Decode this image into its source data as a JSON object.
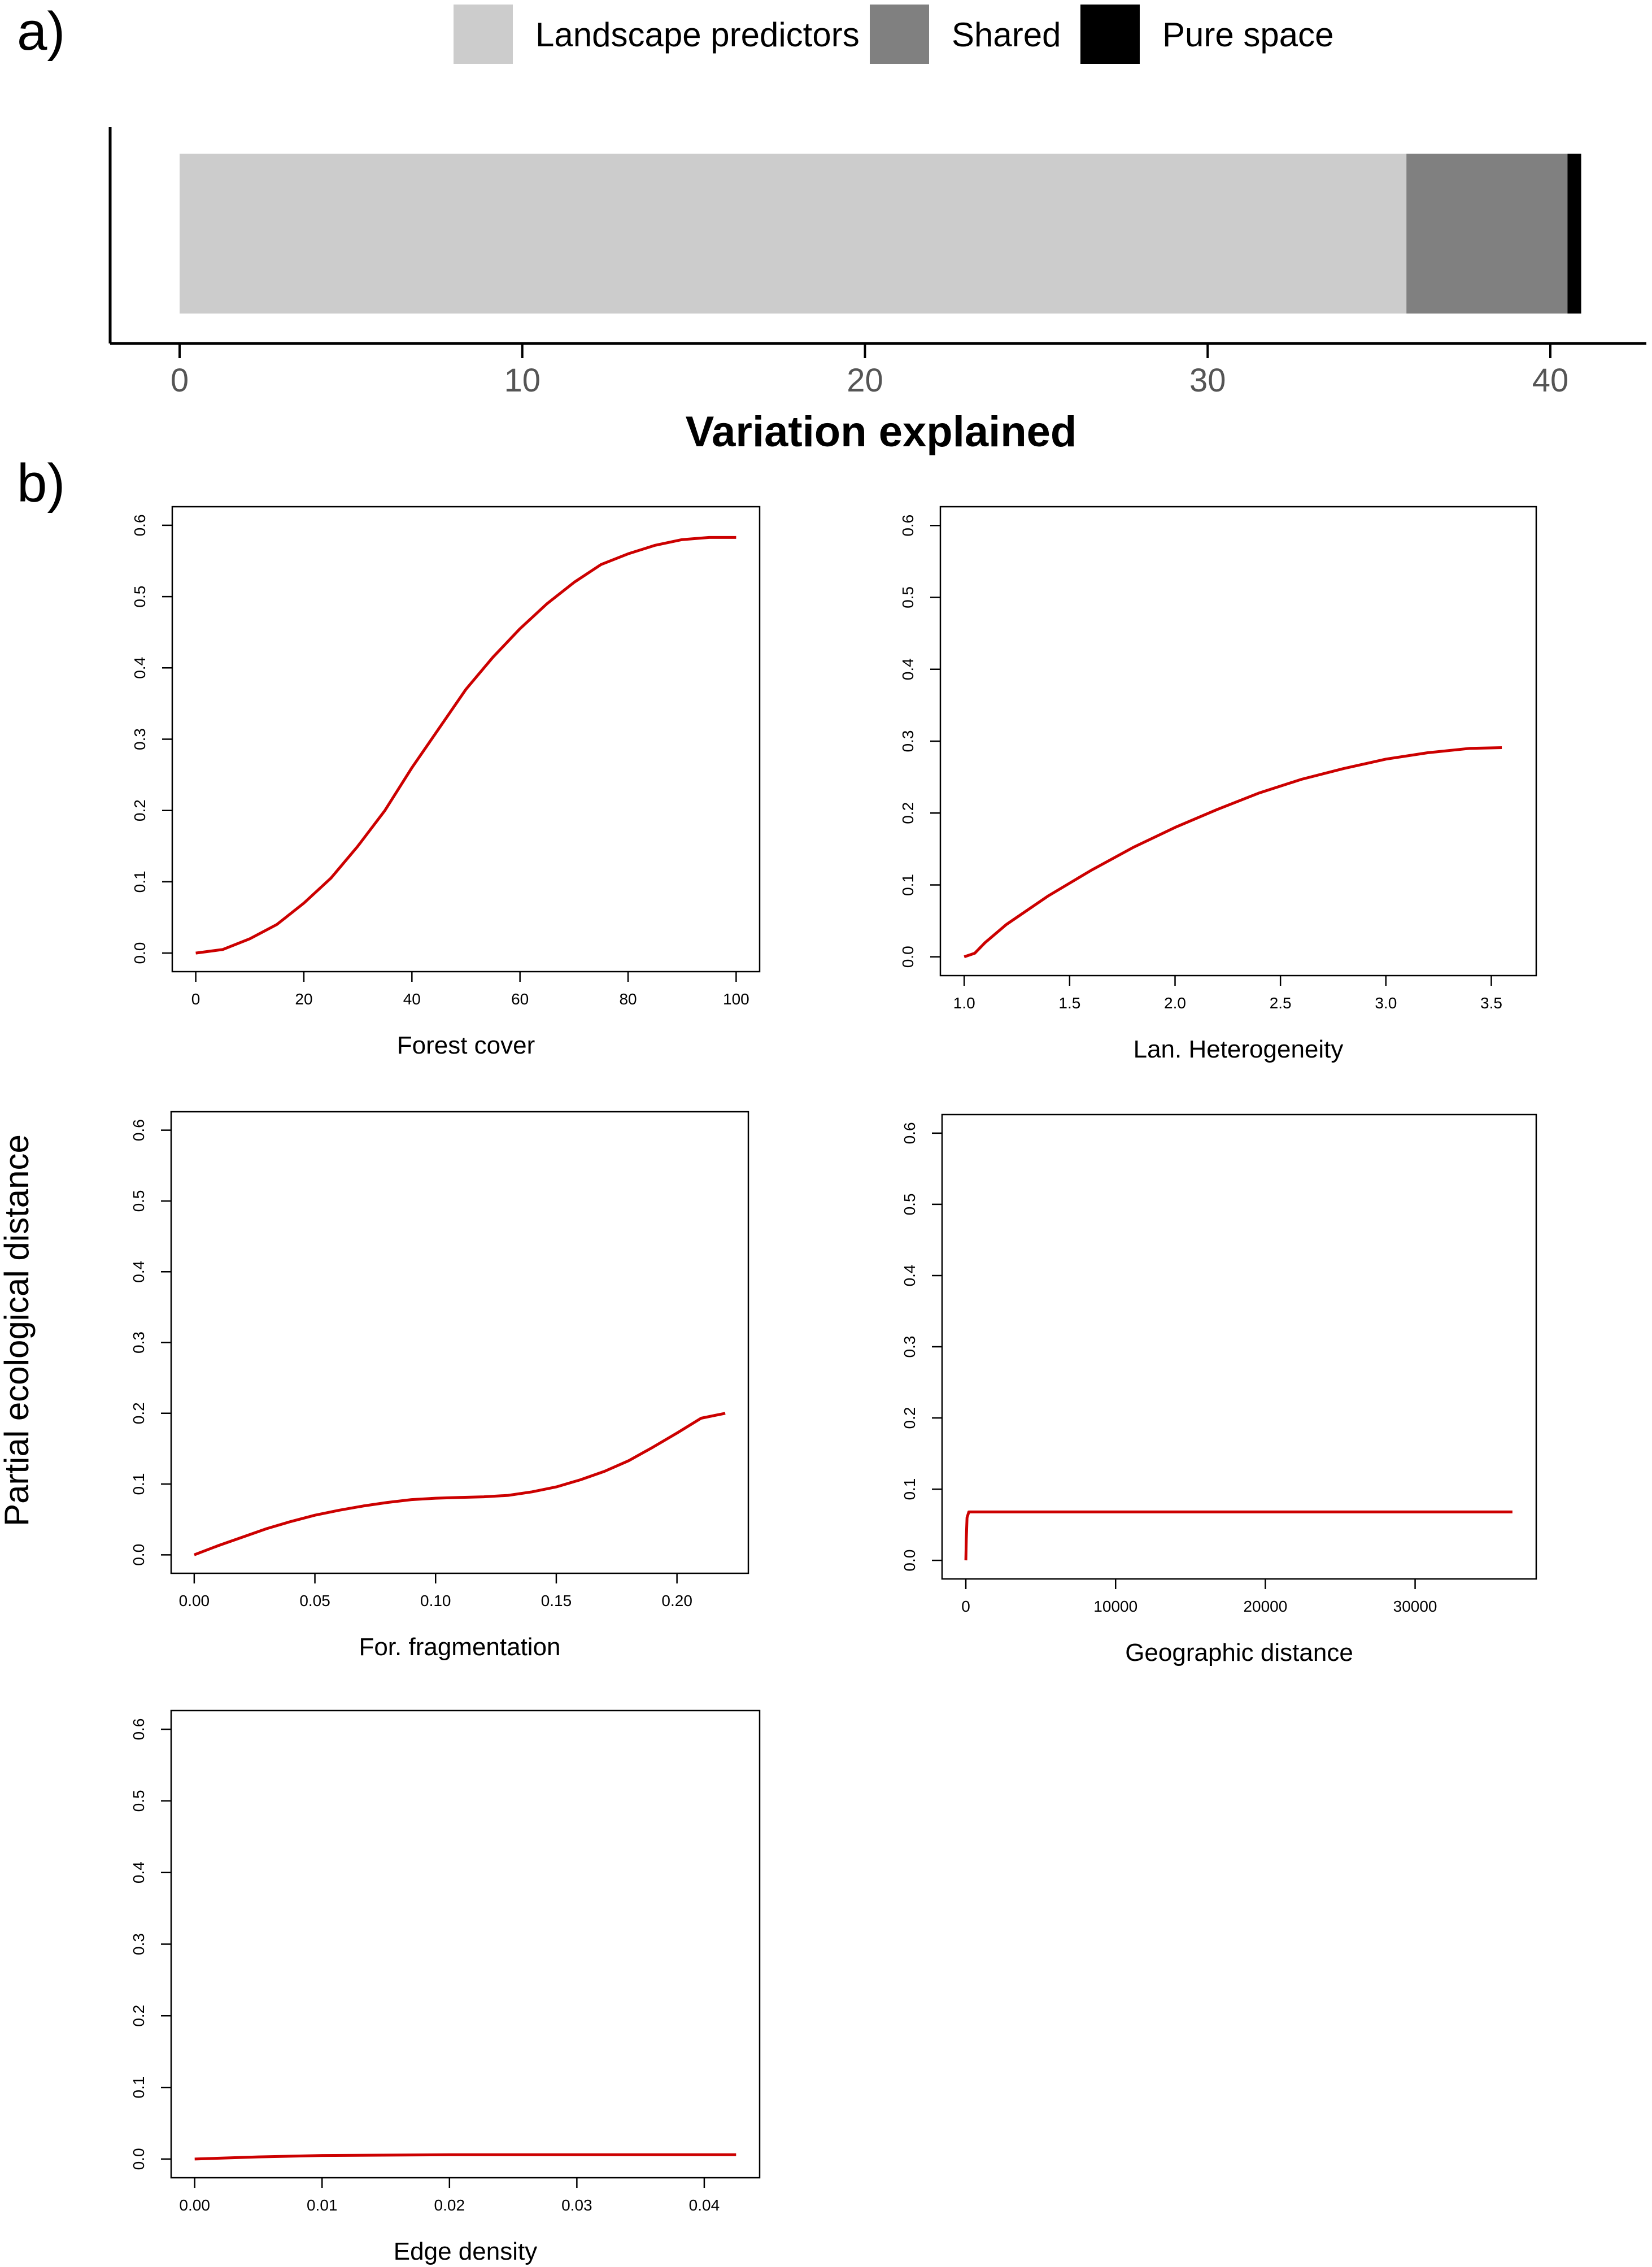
{
  "panel_labels": {
    "a": "a)",
    "b": "b)"
  },
  "chart_data": [
    {
      "id": "a",
      "type": "bar",
      "orientation": "horizontal",
      "stacked": true,
      "xlabel": "Variation explained",
      "ylabel": "",
      "xlim": [
        0,
        42
      ],
      "xticks": [
        0,
        10,
        20,
        30,
        40
      ],
      "legend_position": "top",
      "series": [
        {
          "name": "Landscape predictors",
          "value": 35.8,
          "color": "#cccccc"
        },
        {
          "name": "Shared",
          "value": 4.7,
          "color": "#808080"
        },
        {
          "name": "Pure space",
          "value": 0.4,
          "color": "#000000"
        }
      ]
    },
    {
      "id": "b",
      "type": "line",
      "ylabel": "Partial ecological distance",
      "line_color": "#cc0000",
      "ylim": [
        0,
        0.6
      ],
      "yticks": [
        "0.0",
        "0.1",
        "0.2",
        "0.3",
        "0.4",
        "0.5",
        "0.6"
      ],
      "subplots": [
        {
          "xlabel": "Forest cover",
          "xlim": [
            0,
            100
          ],
          "xticks": [
            0,
            20,
            40,
            60,
            80,
            100
          ],
          "xtick_labels": [
            "0",
            "20",
            "40",
            "60",
            "80",
            "100"
          ],
          "points": [
            [
              0,
              0.0
            ],
            [
              5,
              0.005
            ],
            [
              10,
              0.02
            ],
            [
              15,
              0.04
            ],
            [
              20,
              0.07
            ],
            [
              25,
              0.105
            ],
            [
              30,
              0.15
            ],
            [
              35,
              0.2
            ],
            [
              40,
              0.26
            ],
            [
              45,
              0.315
            ],
            [
              50,
              0.37
            ],
            [
              55,
              0.415
            ],
            [
              60,
              0.455
            ],
            [
              65,
              0.49
            ],
            [
              70,
              0.52
            ],
            [
              75,
              0.545
            ],
            [
              80,
              0.56
            ],
            [
              85,
              0.572
            ],
            [
              90,
              0.58
            ],
            [
              95,
              0.583
            ],
            [
              100,
              0.583
            ]
          ]
        },
        {
          "xlabel": "Lan. Heterogeneity",
          "xlim": [
            1.0,
            3.6
          ],
          "xticks": [
            1.0,
            1.5,
            2.0,
            2.5,
            3.0,
            3.5
          ],
          "xtick_labels": [
            "1.0",
            "1.5",
            "2.0",
            "2.5",
            "3.0",
            "3.5"
          ],
          "points": [
            [
              1.0,
              0.0
            ],
            [
              1.05,
              0.005
            ],
            [
              1.1,
              0.02
            ],
            [
              1.2,
              0.045
            ],
            [
              1.4,
              0.085
            ],
            [
              1.6,
              0.12
            ],
            [
              1.8,
              0.152
            ],
            [
              2.0,
              0.18
            ],
            [
              2.2,
              0.205
            ],
            [
              2.4,
              0.228
            ],
            [
              2.6,
              0.247
            ],
            [
              2.8,
              0.262
            ],
            [
              3.0,
              0.275
            ],
            [
              3.2,
              0.284
            ],
            [
              3.4,
              0.29
            ],
            [
              3.55,
              0.291
            ]
          ]
        },
        {
          "xlabel": "For. fragmentation",
          "xlim": [
            0.0,
            0.22
          ],
          "xticks": [
            0.0,
            0.05,
            0.1,
            0.15,
            0.2
          ],
          "xtick_labels": [
            "0.00",
            "0.05",
            "0.10",
            "0.15",
            "0.20"
          ],
          "points": [
            [
              0.0,
              0.0
            ],
            [
              0.01,
              0.013
            ],
            [
              0.02,
              0.025
            ],
            [
              0.03,
              0.037
            ],
            [
              0.04,
              0.047
            ],
            [
              0.05,
              0.056
            ],
            [
              0.06,
              0.063
            ],
            [
              0.07,
              0.069
            ],
            [
              0.08,
              0.074
            ],
            [
              0.09,
              0.078
            ],
            [
              0.1,
              0.08
            ],
            [
              0.11,
              0.081
            ],
            [
              0.12,
              0.082
            ],
            [
              0.13,
              0.084
            ],
            [
              0.14,
              0.089
            ],
            [
              0.15,
              0.096
            ],
            [
              0.16,
              0.106
            ],
            [
              0.17,
              0.118
            ],
            [
              0.18,
              0.133
            ],
            [
              0.19,
              0.152
            ],
            [
              0.2,
              0.172
            ],
            [
              0.21,
              0.193
            ],
            [
              0.22,
              0.2
            ]
          ]
        },
        {
          "xlabel": "Geographic distance",
          "xlim": [
            0,
            36500
          ],
          "xticks": [
            0,
            10000,
            20000,
            30000
          ],
          "xtick_labels": [
            "0",
            "10000",
            "20000",
            "30000"
          ],
          "points": [
            [
              0,
              0.0
            ],
            [
              30,
              0.03
            ],
            [
              80,
              0.06
            ],
            [
              200,
              0.068
            ],
            [
              36500,
              0.068
            ]
          ]
        },
        {
          "xlabel": "Edge density",
          "xlim": [
            0.0,
            0.0425
          ],
          "xticks": [
            0.0,
            0.01,
            0.02,
            0.03,
            0.04
          ],
          "xtick_labels": [
            "0.00",
            "0.01",
            "0.02",
            "0.03",
            "0.04"
          ],
          "points": [
            [
              0.0,
              0.0
            ],
            [
              0.005,
              0.003
            ],
            [
              0.01,
              0.005
            ],
            [
              0.02,
              0.006
            ],
            [
              0.03,
              0.006
            ],
            [
              0.0425,
              0.006
            ]
          ]
        }
      ]
    }
  ]
}
